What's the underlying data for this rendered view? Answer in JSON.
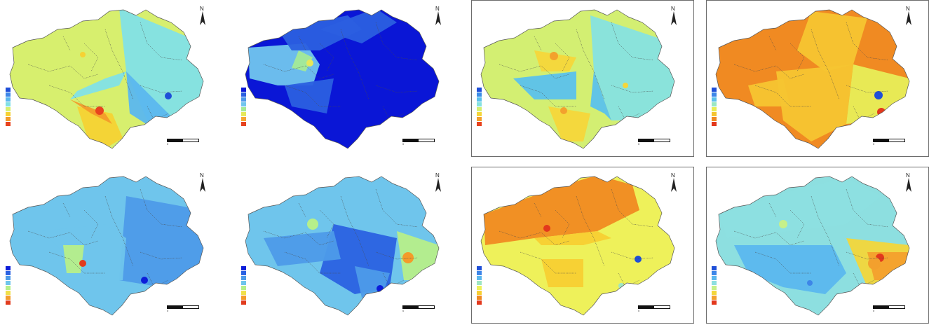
{
  "figure": {
    "north_label": "N",
    "panels": [
      {
        "id": "a",
        "palette": [
          "#1f4fd8",
          "#3d86e8",
          "#5bb7ee",
          "#82e0e6",
          "#d7ef6e",
          "#f6d233",
          "#f39b2a",
          "#e8431e"
        ],
        "legend_title": "",
        "legend_labels": [
          "",
          "",
          "",
          "",
          "",
          "",
          "",
          ""
        ]
      },
      {
        "id": "b",
        "palette": [
          "#0a16d6",
          "#2b5fe0",
          "#4d98ea",
          "#71c5ee",
          "#a4ea97",
          "#e6e85a",
          "#f6a733",
          "#e64420"
        ],
        "legend_title": "",
        "legend_labels": [
          "",
          "",
          "",
          "",
          "",
          "",
          "",
          ""
        ]
      },
      {
        "id": "c",
        "palette": [
          "#1f4fd8",
          "#3b8de8",
          "#5bc1ec",
          "#86e2e0",
          "#d3ef72",
          "#f5d63a",
          "#f3a12d",
          "#e8431e"
        ],
        "legend_title": "",
        "legend_labels": [
          "",
          "",
          "",
          "",
          "",
          "",
          "",
          ""
        ]
      },
      {
        "id": "d",
        "palette": [
          "#1f4fd8",
          "#3d86e8",
          "#5bc1ec",
          "#9ae7c4",
          "#e7ee58",
          "#f5c531",
          "#f08a22",
          "#e3381c"
        ],
        "legend_title": "",
        "legend_labels": [
          "",
          "",
          "",
          "",
          "",
          "",
          "",
          ""
        ]
      },
      {
        "id": "e",
        "palette": [
          "#0c1dd9",
          "#2a62e2",
          "#4d9be9",
          "#6fc5ec",
          "#b6ef8a",
          "#f0e04a",
          "#f49b2a",
          "#e13b1d"
        ],
        "legend_title": "",
        "legend_labels": [
          "",
          "",
          "",
          "",
          "",
          "",
          "",
          ""
        ]
      },
      {
        "id": "f",
        "palette": [
          "#0c1dd9",
          "#2a62e2",
          "#4d9be9",
          "#6fc5ec",
          "#b6ef8a",
          "#f0e04a",
          "#f49b2a",
          "#e13b1d"
        ],
        "legend_title": "",
        "legend_labels": [
          "",
          "",
          "",
          "",
          "",
          "",
          "",
          ""
        ]
      },
      {
        "id": "g",
        "palette": [
          "#1f4fd8",
          "#3d86e8",
          "#5bb7ee",
          "#9fe6c3",
          "#eef15a",
          "#f7cf33",
          "#f08a22",
          "#e3381c"
        ],
        "legend_title": "",
        "legend_labels": [
          "",
          "",
          "",
          "",
          "",
          "",
          "",
          ""
        ]
      },
      {
        "id": "h",
        "palette": [
          "#1f4fd8",
          "#3d86e8",
          "#5bb7ee",
          "#8ddfe0",
          "#c6f08a",
          "#f3d63a",
          "#f3a02d",
          "#e3381c"
        ],
        "legend_title": "",
        "legend_labels": [
          "",
          "",
          "",
          "",
          "",
          "",
          "",
          ""
        ]
      }
    ],
    "scale_ticks": [
      "0",
      "",
      ""
    ]
  }
}
